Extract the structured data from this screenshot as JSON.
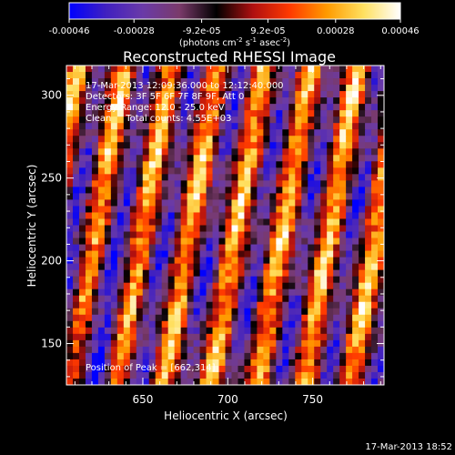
{
  "chart_data": {
    "type": "heatmap",
    "title": "Reconstructed RHESSI Image",
    "xlabel": "Heliocentric X (arcsec)",
    "ylabel": "Heliocentric Y (arcsec)",
    "xlim": [
      605,
      792
    ],
    "ylim": [
      125,
      318
    ],
    "x_ticks": [
      650,
      700,
      750
    ],
    "y_ticks": [
      150,
      200,
      250,
      300
    ],
    "grid": false,
    "colorbar": {
      "placement": "top",
      "range": [
        -0.00046,
        0.00046
      ],
      "tick_labels": [
        "-0.00046",
        "-0.00028",
        "-9.2e-05",
        "9.2e-05",
        "0.00028",
        "0.00046"
      ],
      "tick_values": [
        -0.00046,
        -0.00028,
        -9.2e-05,
        9.2e-05,
        0.00028,
        0.00046
      ],
      "units_label": "(photons cm",
      "units_exp1": "-2",
      "units_mid": " s",
      "units_exp2": "-1",
      "units_mid2": " asec",
      "units_exp3": "-2",
      "units_end": ")"
    },
    "annotations": [
      "17-Mar-2013 12:09:36.000 to 12:12:40.000",
      "Detectors: 3F 5F 6F 7F 8F 9F, Att 0",
      "Energy Range: 12.0 - 25.0 keV",
      "Clean     Total counts: 4.55E+03"
    ],
    "peak_label": "Position of Peak = [662,314]",
    "peak_position": [
      662,
      314
    ],
    "colormap": [
      "#0000ff",
      "#4020c0",
      "#6a3aa8",
      "#7a3a6a",
      "#000000",
      "#b01010",
      "#ff3a00",
      "#ff9a00",
      "#ffe060",
      "#ffffff"
    ]
  },
  "footer": {
    "timestamp": "17-Mar-2013 18:52"
  }
}
